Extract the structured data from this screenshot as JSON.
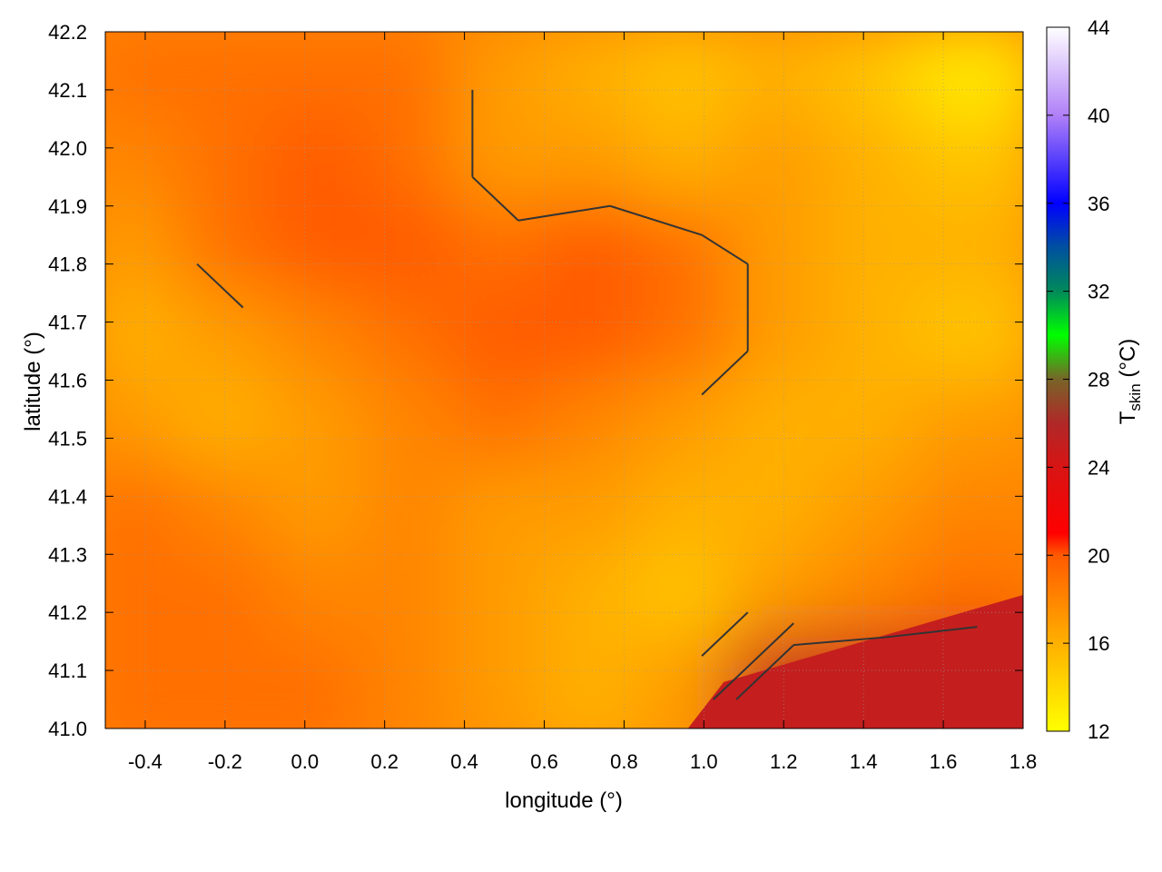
{
  "chart_data": {
    "type": "heatmap",
    "title": "",
    "xlabel": "longitude (°)",
    "ylabel": "latitude (°)",
    "colorbar_label": "T",
    "colorbar_label_sub": "skin",
    "colorbar_unit": " (°C)",
    "xlim": [
      -0.5,
      1.8
    ],
    "ylim": [
      41.0,
      42.2
    ],
    "clim": [
      12,
      44
    ],
    "xticks": [
      "-0.4",
      "-0.2",
      "0.0",
      "0.2",
      "0.4",
      "0.6",
      "0.8",
      "1.0",
      "1.2",
      "1.4",
      "1.6",
      "1.8"
    ],
    "xtick_values": [
      -0.4,
      -0.2,
      0.0,
      0.2,
      0.4,
      0.6,
      0.8,
      1.0,
      1.2,
      1.4,
      1.6,
      1.8
    ],
    "yticks": [
      "41.0",
      "41.1",
      "41.2",
      "41.3",
      "41.4",
      "41.5",
      "41.6",
      "41.7",
      "41.8",
      "41.9",
      "42.0",
      "42.1",
      "42.2"
    ],
    "ytick_values": [
      41.0,
      41.1,
      41.2,
      41.3,
      41.4,
      41.5,
      41.6,
      41.7,
      41.8,
      41.9,
      42.0,
      42.1,
      42.2
    ],
    "cticks": [
      "12",
      "16",
      "20",
      "24",
      "28",
      "32",
      "36",
      "40",
      "44"
    ],
    "ctick_values": [
      12,
      16,
      20,
      24,
      28,
      32,
      36,
      40,
      44
    ],
    "colormap": [
      [
        12,
        "#ffff00"
      ],
      [
        16,
        "#ffb000"
      ],
      [
        20,
        "#ff5a00"
      ],
      [
        21,
        "#ff0000"
      ],
      [
        24,
        "#d81414"
      ],
      [
        26,
        "#b02828"
      ],
      [
        28,
        "#786428"
      ],
      [
        30,
        "#00ff00"
      ],
      [
        32,
        "#008a5a"
      ],
      [
        34,
        "#0050a0"
      ],
      [
        36,
        "#0000ff"
      ],
      [
        40,
        "#b080f8"
      ],
      [
        44,
        "#ffffff"
      ]
    ],
    "grid": true,
    "contours": true,
    "grid_lon": [
      -0.385,
      -0.155,
      0.075,
      0.305,
      0.535,
      0.765,
      0.995,
      1.225,
      1.455,
      1.685
    ],
    "grid_lat": [
      42.1,
      41.95,
      41.8,
      41.65,
      41.5,
      41.35,
      41.2,
      41.05
    ],
    "values": [
      [
        19,
        19,
        19,
        19,
        17,
        16,
        15,
        16,
        15,
        13
      ],
      [
        18,
        19,
        20,
        19,
        17,
        17,
        16,
        17,
        16,
        15
      ],
      [
        17,
        19,
        20,
        20,
        19,
        20,
        19,
        17,
        16,
        16
      ],
      [
        16,
        17,
        18,
        19,
        20,
        20,
        19,
        17,
        16,
        15
      ],
      [
        17,
        16,
        17,
        18,
        19,
        18,
        17,
        16,
        16,
        17
      ],
      [
        19,
        18,
        17,
        18,
        17,
        17,
        16,
        16,
        17,
        18
      ],
      [
        19,
        19,
        18,
        18,
        17,
        16,
        15,
        17,
        18,
        19
      ],
      [
        19,
        19,
        19,
        18,
        17,
        16,
        17,
        25,
        25,
        25
      ]
    ]
  }
}
